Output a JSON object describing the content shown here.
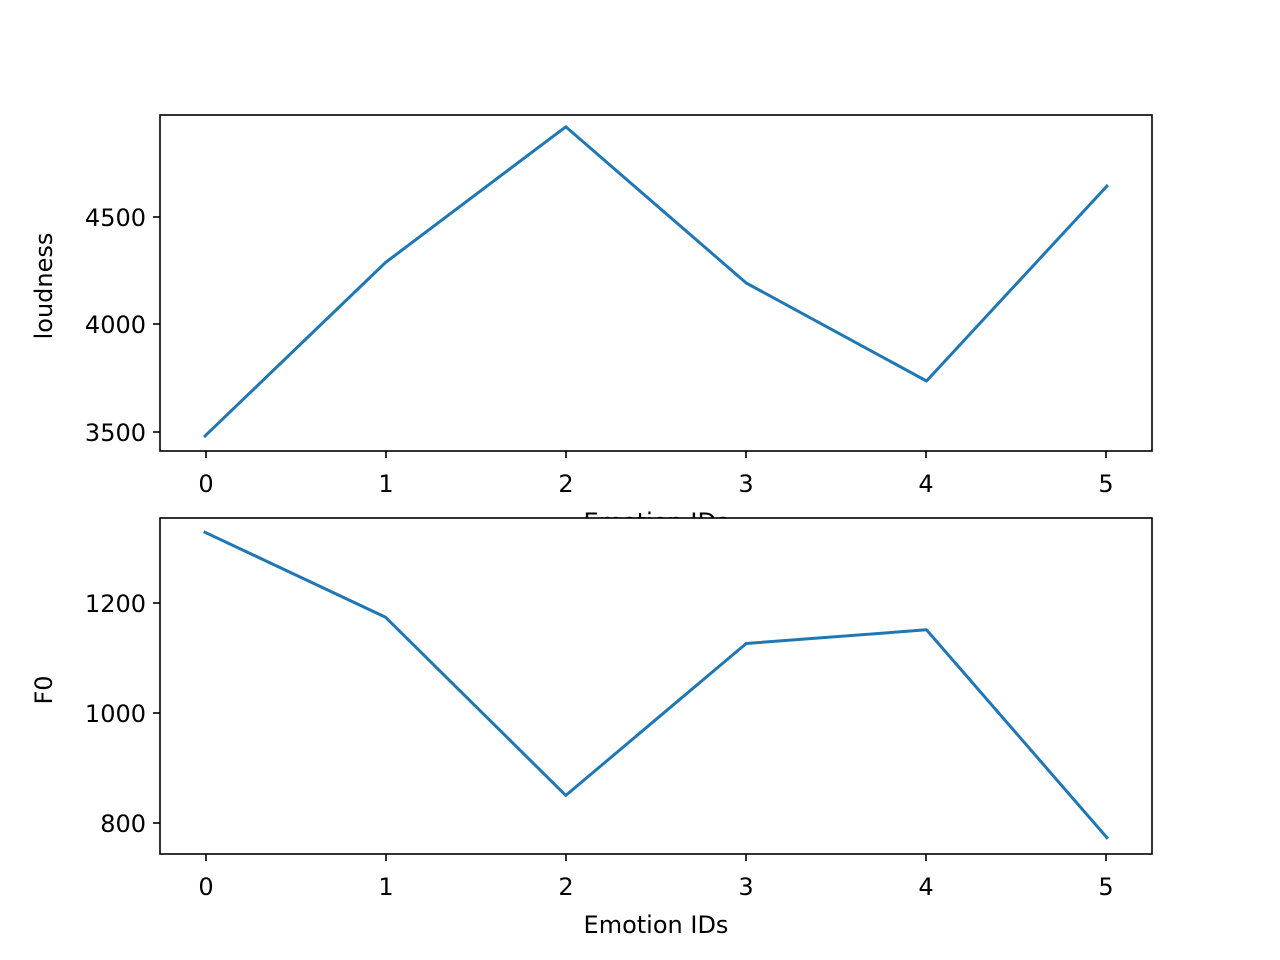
{
  "chart_data": [
    {
      "type": "line",
      "x": [
        0,
        1,
        2,
        3,
        4,
        5
      ],
      "series": [
        {
          "values": [
            3470,
            4275,
            4905,
            4180,
            3725,
            4630
          ]
        }
      ],
      "xlabel": "Emotion IDs",
      "ylabel": "loudness",
      "xticks": [
        "0",
        "1",
        "2",
        "3",
        "4",
        "5"
      ],
      "yticks": [
        "3500",
        "4000",
        "4500"
      ],
      "xlim": [
        -0.25,
        5.25
      ],
      "ylim": [
        3400,
        4960
      ],
      "ytick_values": [
        3500,
        4000,
        4500
      ],
      "grid": false,
      "color": "#1f77b4"
    },
    {
      "type": "line",
      "x": [
        0,
        1,
        2,
        3,
        4,
        5
      ],
      "series": [
        {
          "values": [
            1327,
            1172,
            847,
            1124,
            1149,
            770
          ]
        }
      ],
      "xlabel": "Emotion IDs",
      "ylabel": "F0",
      "xticks": [
        "0",
        "1",
        "2",
        "3",
        "4",
        "5"
      ],
      "yticks": [
        "800",
        "1000",
        "1200"
      ],
      "xlim": [
        -0.25,
        5.25
      ],
      "ylim": [
        740,
        1353
      ],
      "ytick_values": [
        800,
        1000,
        1200
      ],
      "grid": false,
      "color": "#1f77b4"
    }
  ]
}
